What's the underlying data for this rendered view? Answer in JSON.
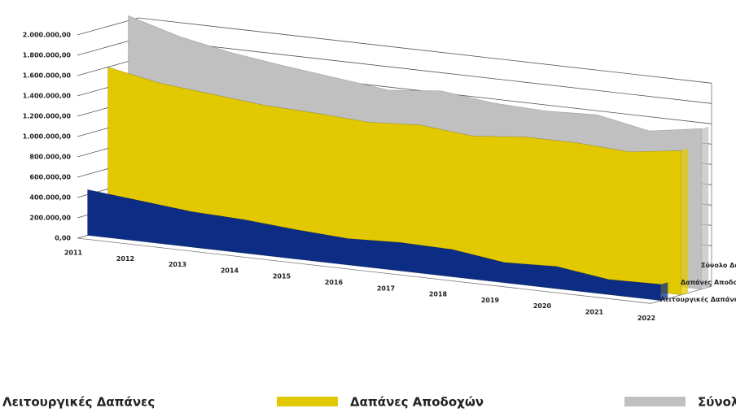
{
  "chart_data": {
    "type": "area3d",
    "categories": [
      "2011",
      "2012",
      "2013",
      "2014",
      "2015",
      "2016",
      "2017",
      "2018",
      "2019",
      "2020",
      "2021",
      "2022"
    ],
    "series": [
      {
        "name": "Λειτουργικές Δαπάνες",
        "color": "#0c2d83",
        "values": [
          450000,
          400000,
          350000,
          330000,
          290000,
          260000,
          280000,
          270000,
          200000,
          220000,
          150000,
          160000
        ]
      },
      {
        "name": "Δαπάνες Αποδοχών",
        "color": "#e1c800",
        "values": [
          1600000,
          1500000,
          1450000,
          1400000,
          1380000,
          1350000,
          1380000,
          1330000,
          1380000,
          1380000,
          1350000,
          1420000
        ]
      },
      {
        "name": "Σύνολο Δαπανών",
        "color": "#c0c0c0",
        "values": [
          2050000,
          1900000,
          1800000,
          1730000,
          1670000,
          1610000,
          1660000,
          1600000,
          1580000,
          1600000,
          1500000,
          1580000
        ]
      }
    ],
    "ylim": [
      0,
      2000000
    ],
    "yticks": [
      {
        "value": 0,
        "label": "0,00"
      },
      {
        "value": 200000,
        "label": "200.000,00"
      },
      {
        "value": 400000,
        "label": "400.000,00"
      },
      {
        "value": 600000,
        "label": "600.000,00"
      },
      {
        "value": 800000,
        "label": "800.000,00"
      },
      {
        "value": 1000000,
        "label": "1.000.000,00"
      },
      {
        "value": 1200000,
        "label": "1.200.000,00"
      },
      {
        "value": 1400000,
        "label": "1.400.000,00"
      },
      {
        "value": 1600000,
        "label": "1.600.000,00"
      },
      {
        "value": 1800000,
        "label": "1.800.000,00"
      },
      {
        "value": 2000000,
        "label": "2.000.000,00"
      }
    ],
    "grid": true,
    "legend": "bottom"
  }
}
